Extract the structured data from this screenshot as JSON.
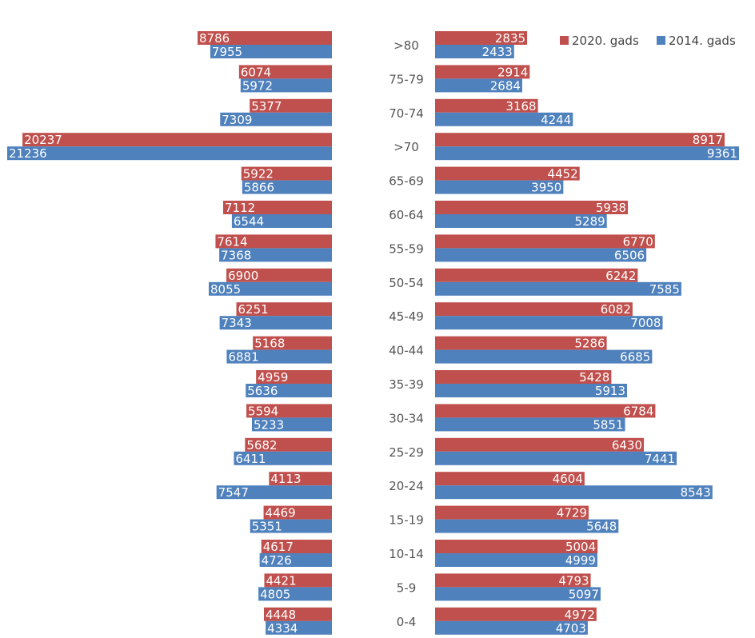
{
  "chart_data": {
    "type": "bar",
    "orientation": "horizontal",
    "layout": "population-pyramid",
    "legend_position": "top-right",
    "grid": false,
    "colors": {
      "2020. gads": "#c0504d",
      "2014. gads": "#4f81bd"
    },
    "categories": [
      ">80",
      "75-79",
      "70-74",
      ">70",
      "65-69",
      "60-64",
      "55-59",
      "50-54",
      "45-49",
      "40-44",
      "35-39",
      "30-34",
      "25-29",
      "20-24",
      "15-19",
      "10-14",
      "5-9",
      "0-4"
    ],
    "left": {
      "series": [
        {
          "name": "2020. gads",
          "values": [
            8786,
            6074,
            5377,
            20237,
            5922,
            7112,
            7614,
            6900,
            6251,
            5168,
            4959,
            5594,
            5682,
            4113,
            4469,
            4617,
            4421,
            4448
          ]
        },
        {
          "name": "2014. gads",
          "values": [
            7955,
            5972,
            7309,
            21236,
            5866,
            6544,
            7368,
            8055,
            7343,
            6881,
            5636,
            5233,
            6411,
            7547,
            5351,
            4726,
            4805,
            4334
          ]
        }
      ]
    },
    "right": {
      "series": [
        {
          "name": "2020. gads",
          "values": [
            2835,
            2914,
            3168,
            8917,
            4452,
            5938,
            6770,
            6242,
            6082,
            5286,
            5428,
            6784,
            6430,
            4604,
            4729,
            5004,
            4793,
            4972
          ]
        },
        {
          "name": "2014. gads",
          "values": [
            2433,
            2684,
            4244,
            9361,
            3950,
            5289,
            6506,
            7585,
            7008,
            6685,
            5913,
            5851,
            7441,
            8543,
            5648,
            4999,
            5097,
            4703
          ]
        }
      ]
    },
    "legend": [
      {
        "name": "2020. gads",
        "color": "#c0504d"
      },
      {
        "name": "2014. gads",
        "color": "#4f81bd"
      }
    ]
  }
}
